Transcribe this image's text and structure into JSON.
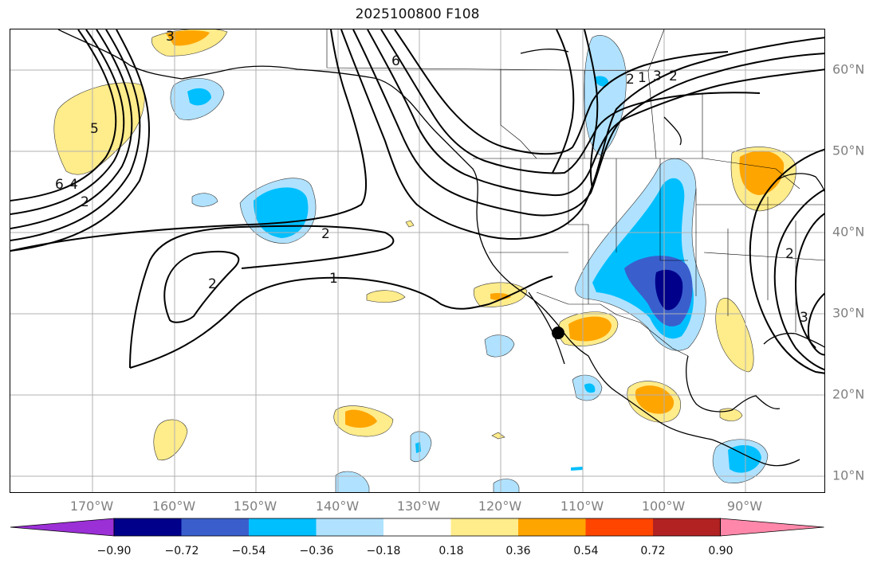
{
  "title": "2025100800 F108",
  "latitude_labels": [
    "60°N",
    "50°N",
    "40°N",
    "30°N",
    "20°N",
    "10°N"
  ],
  "longitude_labels": [
    "170°W",
    "160°W",
    "150°W",
    "140°W",
    "130°W",
    "120°W",
    "110°W",
    "100°W",
    "90°W"
  ],
  "contour_labels": [
    "3",
    "5",
    "6",
    "4",
    "2",
    "2",
    "2",
    "1",
    "6",
    "2",
    "1",
    "3",
    "2",
    "2",
    "3"
  ],
  "colorbar": {
    "tick_labels": [
      "−0.90",
      "−0.72",
      "−0.54",
      "−0.36",
      "−0.18",
      "0.18",
      "0.36",
      "0.54",
      "0.72",
      "0.90"
    ],
    "colors": [
      "#9b30d6",
      "#00008b",
      "#3a5fcd",
      "#00bfff",
      "#b0e2ff",
      "#ffffff",
      "#ffec8b",
      "#ffa500",
      "#ff4500",
      "#b22222",
      "#ff88aa"
    ]
  },
  "map": {
    "region": "North Pacific and North America",
    "marker": "black-dot",
    "colors": {
      "neg_light": "#b0e2ff",
      "neg_mid": "#00bfff",
      "neg_strong": "#3a5fcd",
      "neg_max": "#00008b",
      "pos_light": "#ffec8b",
      "pos_mid": "#ffa500",
      "gridline": "#b0b0b0",
      "axis_label": "#808080"
    }
  }
}
